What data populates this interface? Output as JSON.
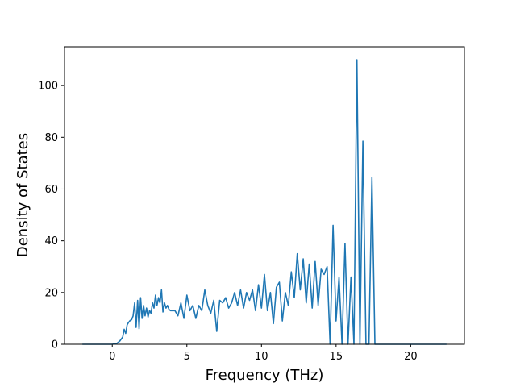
{
  "chart_data": {
    "type": "line",
    "title": "",
    "xlabel": "Frequency (THz)",
    "ylabel": "Density of States",
    "xlim": [
      -3.2,
      23.6
    ],
    "ylim": [
      0,
      115
    ],
    "xticks": [
      0,
      5,
      10,
      15,
      20
    ],
    "yticks": [
      0,
      20,
      40,
      60,
      80,
      100
    ],
    "grid": false,
    "legend": "none",
    "colors": {
      "line": "#1f77b4",
      "axes": "#000000",
      "background": "#ffffff"
    },
    "series": [
      {
        "x": [
          -2.0,
          -1.0,
          0.0,
          0.3,
          0.5,
          0.7,
          0.8,
          0.9,
          1.0,
          1.1,
          1.2,
          1.3,
          1.4,
          1.5,
          1.6,
          1.7,
          1.8,
          1.9,
          2.0,
          2.1,
          2.2,
          2.3,
          2.4,
          2.5,
          2.6,
          2.7,
          2.8,
          2.9,
          3.0,
          3.1,
          3.2,
          3.3,
          3.4,
          3.5,
          3.6,
          3.7,
          3.8,
          3.9,
          4.0,
          4.2,
          4.4,
          4.6,
          4.8,
          5.0,
          5.2,
          5.4,
          5.6,
          5.8,
          6.0,
          6.2,
          6.4,
          6.6,
          6.8,
          7.0,
          7.2,
          7.4,
          7.6,
          7.8,
          8.0,
          8.2,
          8.4,
          8.6,
          8.8,
          9.0,
          9.2,
          9.4,
          9.6,
          9.8,
          10.0,
          10.2,
          10.4,
          10.6,
          10.8,
          11.0,
          11.2,
          11.4,
          11.6,
          11.8,
          12.0,
          12.2,
          12.4,
          12.6,
          12.8,
          13.0,
          13.2,
          13.4,
          13.6,
          13.8,
          14.0,
          14.2,
          14.4,
          14.6,
          14.8,
          15.0,
          15.2,
          15.4,
          15.6,
          15.8,
          16.0,
          16.2,
          16.4,
          16.6,
          16.8,
          17.0,
          17.2,
          17.4,
          17.6,
          18.0,
          19.0,
          20.0,
          21.0,
          22.4
        ],
        "y": [
          0,
          0,
          0,
          0.3,
          1.2,
          2.8,
          5.8,
          4.2,
          7.5,
          8.5,
          9.2,
          9.5,
          11.0,
          16.0,
          6.5,
          17.0,
          6.0,
          18.0,
          10.0,
          15.0,
          11.0,
          14.0,
          10.5,
          13.0,
          12.0,
          16.0,
          14.0,
          19.0,
          15.0,
          18.0,
          16.0,
          21.0,
          12.5,
          16.0,
          14.0,
          15.0,
          13.5,
          13.0,
          13.0,
          13.0,
          11.0,
          16.0,
          10.0,
          19.0,
          13.0,
          15.0,
          10.0,
          15.0,
          13.0,
          21.0,
          15.0,
          12.0,
          17.0,
          5.0,
          17.0,
          16.0,
          18.0,
          14.0,
          16.0,
          20.0,
          15.0,
          21.0,
          14.0,
          20.0,
          17.0,
          21.0,
          13.0,
          23.0,
          14.0,
          27.0,
          13.0,
          20.0,
          8.0,
          22.0,
          24.0,
          9.0,
          20.0,
          15.0,
          28.0,
          18.0,
          35.0,
          21.0,
          33.0,
          16.0,
          31.0,
          14.0,
          32.0,
          15.0,
          29.0,
          27.0,
          30.0,
          0.0,
          46.0,
          9.0,
          26.0,
          0.0,
          39.0,
          0.0,
          26.0,
          0.0,
          110.0,
          0.0,
          78.5,
          0.0,
          0.0,
          64.5,
          0.0,
          0,
          0,
          0,
          0,
          0
        ]
      }
    ]
  }
}
